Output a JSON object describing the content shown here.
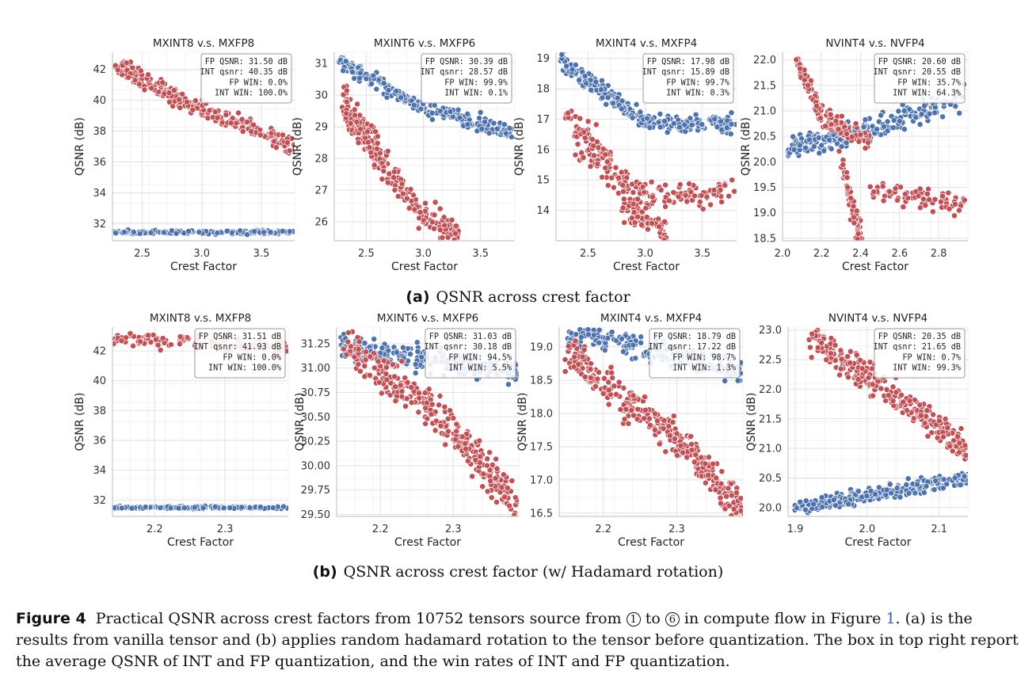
{
  "colors": {
    "fp": "#4C72B0",
    "int": "#C44E52"
  },
  "axes": {
    "xlabel": "Crest Factor",
    "ylabel": "QSNR (dB)"
  },
  "captions": {
    "a_label": "(a)",
    "a_text": "QSNR across crest factor",
    "b_label": "(b)",
    "b_text": "QSNR across crest factor (w/ Hadamard rotation)"
  },
  "figure_caption": {
    "label": "Figure 4",
    "text1": "Practical QSNR across crest factors from 10752 tensors source from",
    "circle1": "1",
    "text2": "to",
    "circle2": "6",
    "text3": "in compute flow in Figure",
    "ref": "1",
    "text4": ". (a) is the results from vanilla tensor and (b) applies random hadamard rotation to the tensor before quantization. The box in top right report the average QSNR of INT and FP quantization, and the win rates of INT and FP quantization."
  },
  "chart_data": [
    {
      "type": "scatter",
      "row": "a",
      "title": "MXINT8 v.s. MXFP8",
      "xlim": [
        2.25,
        3.78
      ],
      "ylim": [
        30.9,
        43.1
      ],
      "xticks": [
        2.5,
        3.0,
        3.5
      ],
      "xtick_labels": [
        "2.5",
        "3.0",
        "3.5"
      ],
      "yticks": [
        32,
        34,
        36,
        38,
        40,
        42
      ],
      "ytick_labels": [
        "32",
        "34",
        "36",
        "38",
        "40",
        "42"
      ],
      "legend": [
        "FP QSNR:  31.50 dB",
        "INT qsnr:  40.35 dB",
        "FP WIN:    0.0%",
        "INT WIN:  100.0%"
      ],
      "series": [
        {
          "name": "FP",
          "color": "fp",
          "segments": [
            [
              2.27,
              31.45,
              3.78,
              31.45
            ]
          ],
          "spread": 0.12,
          "count": 170
        },
        {
          "name": "INT",
          "color": "int",
          "segments": [
            [
              2.28,
              42.3,
              2.85,
              39.9
            ],
            [
              2.85,
              39.9,
              3.78,
              37.0
            ]
          ],
          "spread": 0.55,
          "count": 260
        }
      ]
    },
    {
      "type": "scatter",
      "row": "a",
      "title": "MXINT6 v.s. MXFP6",
      "xlim": [
        2.22,
        3.8
      ],
      "ylim": [
        25.4,
        31.35
      ],
      "xticks": [
        2.5,
        3.0,
        3.5
      ],
      "xtick_labels": [
        "2.5",
        "3.0",
        "3.5"
      ],
      "yticks": [
        26,
        27,
        28,
        29,
        30,
        31
      ],
      "ytick_labels": [
        "26",
        "27",
        "28",
        "29",
        "30",
        "31"
      ],
      "legend": [
        "FP QSNR:  30.39 dB",
        "INT qsnr:  28.57 dB",
        "FP WIN:   99.9%",
        "INT WIN:    0.1%"
      ],
      "series": [
        {
          "name": "FP",
          "color": "fp",
          "segments": [
            [
              2.27,
              31.05,
              3.0,
              29.6
            ],
            [
              3.0,
              29.6,
              3.78,
              28.8
            ]
          ],
          "spread": 0.25,
          "count": 250
        },
        {
          "name": "INT",
          "color": "int",
          "segments": [
            [
              2.3,
              30.0,
              2.95,
              26.3
            ],
            [
              2.3,
              29.5,
              2.7,
              27.5
            ],
            [
              2.95,
              26.3,
              3.3,
              25.6
            ]
          ],
          "spread": 0.45,
          "count": 280
        }
      ]
    },
    {
      "type": "scatter",
      "row": "a",
      "title": "MXINT4 v.s. MXFP4",
      "xlim": [
        2.22,
        3.8
      ],
      "ylim": [
        13.0,
        19.2
      ],
      "xticks": [
        2.5,
        3.0,
        3.5
      ],
      "xtick_labels": [
        "2.5",
        "3.0",
        "3.5"
      ],
      "yticks": [
        14,
        15,
        16,
        17,
        18,
        19
      ],
      "ytick_labels": [
        "14",
        "15",
        "16",
        "17",
        "18",
        "19"
      ],
      "legend": [
        "FP QSNR:  17.98 dB",
        "INT qsnr:  15.89 dB",
        "FP WIN:   99.7%",
        "INT WIN:    0.3%"
      ],
      "series": [
        {
          "name": "FP",
          "color": "fp",
          "segments": [
            [
              2.27,
              18.9,
              3.0,
              16.9
            ],
            [
              3.0,
              16.9,
              3.78,
              16.8
            ]
          ],
          "spread": 0.3,
          "count": 260
        },
        {
          "name": "INT",
          "color": "int",
          "segments": [
            [
              2.3,
              17.2,
              2.7,
              15.6
            ],
            [
              2.4,
              16.0,
              3.0,
              14.5
            ],
            [
              3.0,
              14.5,
              3.78,
              14.6
            ],
            [
              2.8,
              14.2,
              3.2,
              13.2
            ]
          ],
          "spread": 0.45,
          "count": 290
        }
      ]
    },
    {
      "type": "scatter",
      "row": "a",
      "title": "NVINT4 v.s. NVFP4",
      "xlim": [
        2.0,
        2.95
      ],
      "ylim": [
        18.45,
        22.15
      ],
      "xticks": [
        2.0,
        2.2,
        2.4,
        2.6,
        2.8
      ],
      "xtick_labels": [
        "2.0",
        "2.2",
        "2.4",
        "2.6",
        "2.8"
      ],
      "yticks": [
        18.5,
        19.0,
        19.5,
        20.0,
        20.5,
        21.0,
        21.5,
        22.0
      ],
      "ytick_labels": [
        "18.5",
        "19.0",
        "19.5",
        "20.0",
        "20.5",
        "21.0",
        "21.5",
        "22.0"
      ],
      "legend": [
        "FP QSNR:  20.60 dB",
        "INT qsnr:  20.55 dB",
        "FP WIN:   35.7%",
        "INT WIN:   64.3%"
      ],
      "series": [
        {
          "name": "FP",
          "color": "fp",
          "segments": [
            [
              2.03,
              20.3,
              2.45,
              20.6
            ],
            [
              2.45,
              20.6,
              2.93,
              21.3
            ]
          ],
          "spread": 0.22,
          "count": 220
        },
        {
          "name": "INT",
          "color": "int",
          "segments": [
            [
              2.07,
              22.0,
              2.2,
              20.9
            ],
            [
              2.2,
              20.9,
              2.45,
              20.4
            ],
            [
              2.3,
              20.0,
              2.4,
              18.5
            ],
            [
              2.45,
              19.4,
              2.93,
              19.2
            ]
          ],
          "spread": 0.22,
          "count": 280
        }
      ]
    },
    {
      "type": "scatter",
      "row": "b",
      "title": "MXINT8 v.s. MXFP8",
      "xlim": [
        2.14,
        2.39
      ],
      "ylim": [
        30.9,
        43.6
      ],
      "xticks": [
        2.2,
        2.3
      ],
      "xtick_labels": [
        "2.2",
        "2.3"
      ],
      "yticks": [
        32,
        34,
        36,
        38,
        40,
        42
      ],
      "ytick_labels": [
        "32",
        "34",
        "36",
        "38",
        "40",
        "42"
      ],
      "legend": [
        "FP QSNR:  31.51 dB",
        "INT qsnr:  41.93 dB",
        "FP WIN:    0.0%",
        "INT WIN:  100.0%"
      ],
      "series": [
        {
          "name": "FP",
          "color": "fp",
          "segments": [
            [
              2.14,
              31.5,
              2.39,
              31.5
            ]
          ],
          "spread": 0.08,
          "count": 190
        },
        {
          "name": "INT",
          "color": "int",
          "segments": [
            [
              2.14,
              42.9,
              2.39,
              42.2
            ]
          ],
          "spread": 0.5,
          "count": 120
        }
      ]
    },
    {
      "type": "scatter",
      "row": "b",
      "title": "MXINT6 v.s. MXFP6",
      "xlim": [
        2.14,
        2.39
      ],
      "ylim": [
        29.48,
        31.42
      ],
      "xticks": [
        2.2,
        2.3
      ],
      "xtick_labels": [
        "2.2",
        "2.3"
      ],
      "yticks": [
        29.5,
        29.75,
        30.0,
        30.25,
        30.5,
        30.75,
        31.0,
        31.25
      ],
      "ytick_labels": [
        "29.50",
        "29.75",
        "30.00",
        "30.25",
        "30.50",
        "30.75",
        "31.00",
        "31.25"
      ],
      "legend": [
        "FP QSNR:  31.03 dB",
        "INT qsnr:  30.18 dB",
        "FP WIN:   94.5%",
        "INT WIN:    5.5%"
      ],
      "series": [
        {
          "name": "FP",
          "color": "fp",
          "segments": [
            [
              2.14,
              31.22,
              2.39,
              30.95
            ]
          ],
          "spread": 0.12,
          "count": 230
        },
        {
          "name": "INT",
          "color": "int",
          "segments": [
            [
              2.15,
              31.25,
              2.3,
              30.4
            ],
            [
              2.3,
              30.4,
              2.39,
              29.55
            ]
          ],
          "spread": 0.2,
          "count": 330
        }
      ]
    },
    {
      "type": "scatter",
      "row": "b",
      "title": "MXINT4 v.s. MXFP4",
      "xlim": [
        2.14,
        2.39
      ],
      "ylim": [
        16.45,
        19.3
      ],
      "xticks": [
        2.2,
        2.3
      ],
      "xtick_labels": [
        "2.2",
        "2.3"
      ],
      "yticks": [
        16.5,
        17.0,
        17.5,
        18.0,
        18.5,
        19.0
      ],
      "ytick_labels": [
        "16.5",
        "17.0",
        "17.5",
        "18.0",
        "18.5",
        "19.0"
      ],
      "legend": [
        "FP QSNR:  18.79 dB",
        "INT qsnr:  17.22 dB",
        "FP WIN:   98.7%",
        "INT WIN:    1.3%"
      ],
      "series": [
        {
          "name": "FP",
          "color": "fp",
          "segments": [
            [
              2.15,
              19.2,
              2.39,
              18.65
            ]
          ],
          "spread": 0.2,
          "count": 200
        },
        {
          "name": "INT",
          "color": "int",
          "segments": [
            [
              2.15,
              18.9,
              2.3,
              17.6
            ],
            [
              2.3,
              17.6,
              2.39,
              16.55
            ]
          ],
          "spread": 0.28,
          "count": 330
        }
      ]
    },
    {
      "type": "scatter",
      "row": "b",
      "title": "NVINT4 v.s. NVFP4",
      "xlim": [
        1.89,
        2.14
      ],
      "ylim": [
        19.85,
        23.05
      ],
      "xticks": [
        1.9,
        2.0,
        2.1
      ],
      "xtick_labels": [
        "1.9",
        "2.0",
        "2.1"
      ],
      "yticks": [
        20.0,
        20.5,
        21.0,
        21.5,
        22.0,
        22.5,
        23.0
      ],
      "ytick_labels": [
        "20.0",
        "20.5",
        "21.0",
        "21.5",
        "22.0",
        "22.5",
        "23.0"
      ],
      "legend": [
        "FP QSNR:  20.35 dB",
        "INT qsnr:  21.65 dB",
        "FP WIN:    0.7%",
        "INT WIN:   99.3%"
      ],
      "series": [
        {
          "name": "FP",
          "color": "fp",
          "segments": [
            [
              1.9,
              20.0,
              2.14,
              20.5
            ]
          ],
          "spread": 0.12,
          "count": 260
        },
        {
          "name": "INT",
          "color": "int",
          "segments": [
            [
              1.92,
              22.9,
              2.14,
              21.0
            ]
          ],
          "spread": 0.25,
          "count": 300
        }
      ]
    }
  ]
}
